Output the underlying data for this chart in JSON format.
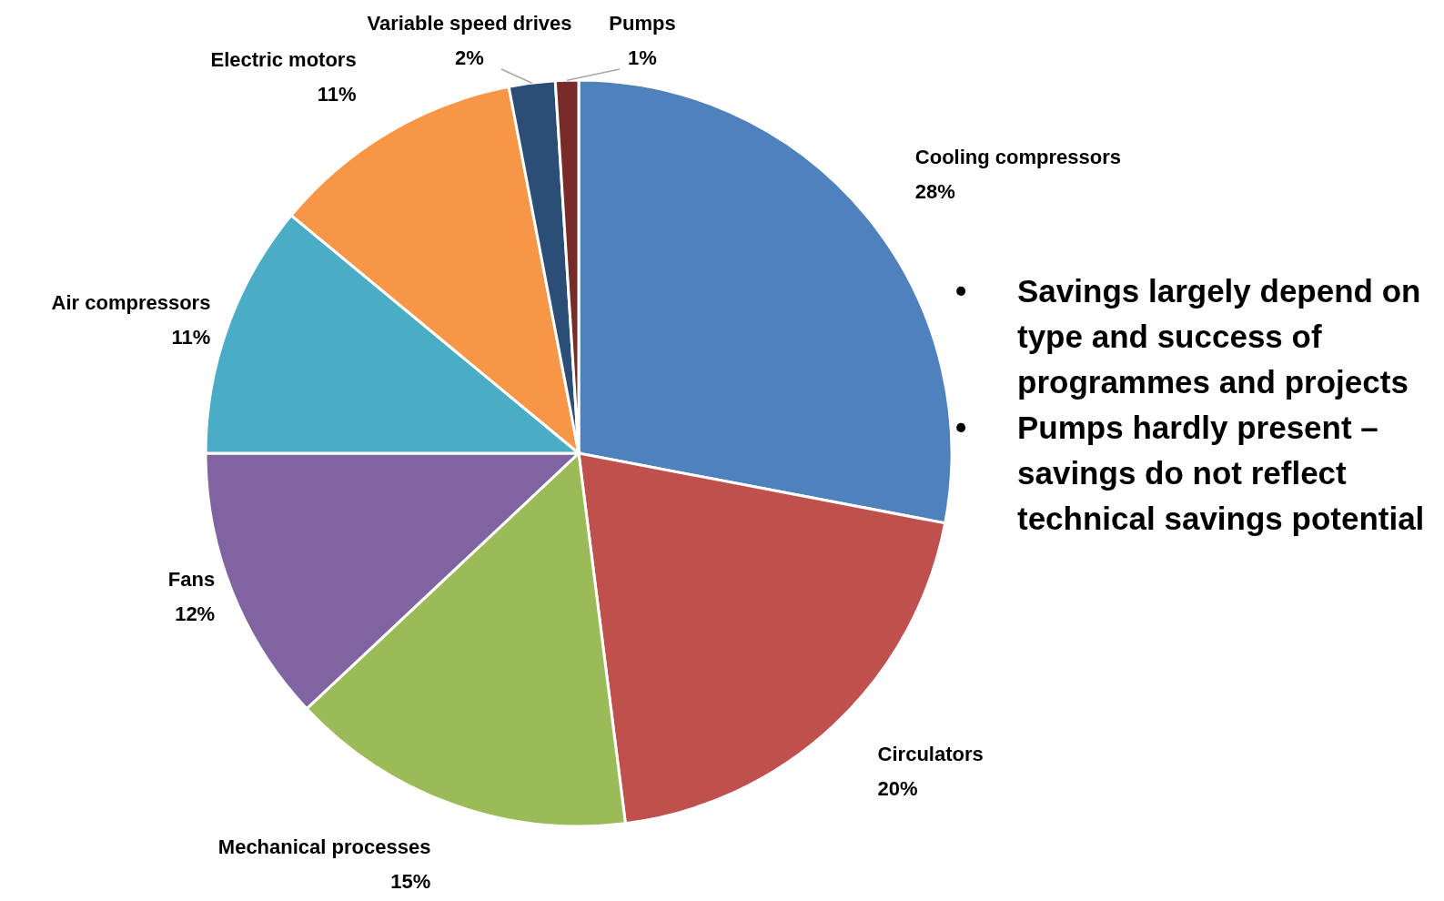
{
  "chart_data": {
    "type": "pie",
    "categories": [
      "Cooling compressors",
      "Circulators",
      "Mechanical processes",
      "Fans",
      "Air compressors",
      "Electric motors",
      "Variable speed drives",
      "Pumps"
    ],
    "values": [
      28,
      20,
      15,
      12,
      11,
      11,
      2,
      1
    ],
    "value_labels": [
      "28%",
      "20%",
      "15%",
      "12%",
      "11%",
      "11%",
      "2%",
      "1%"
    ],
    "colors": [
      "#4f81bd",
      "#c0504d",
      "#9bbb59",
      "#8064a2",
      "#4bacc6",
      "#f79646",
      "#2c4d75",
      "#772c2a"
    ],
    "annotations": [
      "•\tSavings largely depend on type and success of programmes and projects",
      "•\tPumps hardly present – savings do not reflect technical savings potential"
    ]
  }
}
